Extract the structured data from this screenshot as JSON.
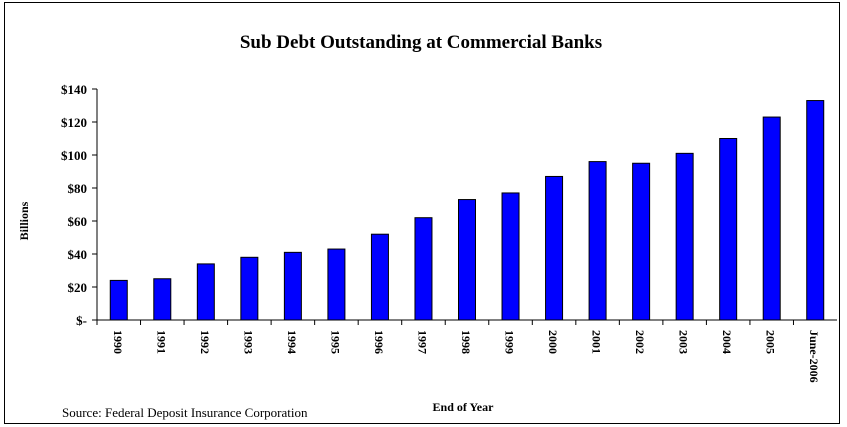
{
  "chart_data": {
    "type": "bar",
    "title": "Sub Debt Outstanding at Commercial Banks",
    "xlabel": "End of Year",
    "ylabel": "Billions",
    "categories": [
      "1990",
      "1991",
      "1992",
      "1993",
      "1994",
      "1995",
      "1996",
      "1997",
      "1998",
      "1999",
      "2000",
      "2001",
      "2002",
      "2003",
      "2004",
      "2005",
      "June-2006"
    ],
    "values": [
      24,
      25,
      34,
      38,
      41,
      43,
      52,
      62,
      73,
      77,
      87,
      96,
      95,
      101,
      110,
      123,
      133
    ],
    "ylim": [
      0,
      140
    ],
    "yticks": [
      0,
      20,
      40,
      60,
      80,
      100,
      120,
      140
    ],
    "ytick_labels": [
      "$-",
      "$20",
      "$40",
      "$60",
      "$80",
      "$100",
      "$120",
      "$140"
    ],
    "grid": false,
    "bar_color": "#0000ff",
    "bar_edge_color": "#000000",
    "source": "Source:  Federal Deposit Insurance Corporation"
  }
}
